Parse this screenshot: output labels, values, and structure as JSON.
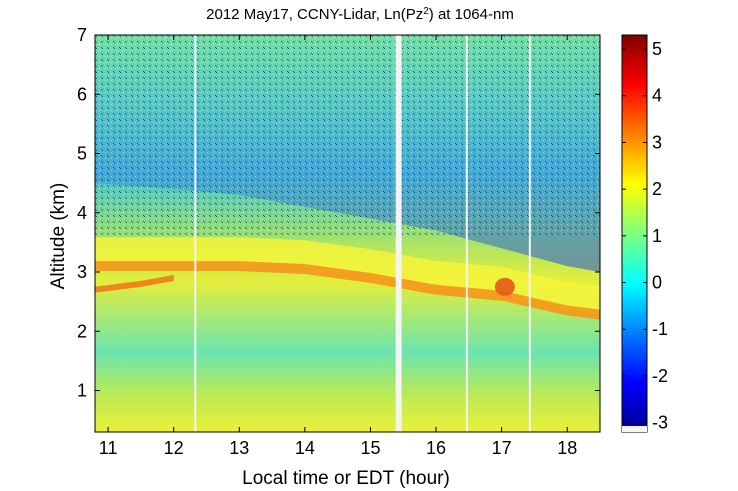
{
  "chart_data": {
    "type": "heatmap",
    "title": "2012 May17, CCNY-Lidar, Ln(Pz",
    "title_superscript": "2",
    "title_suffix": ") at 1064-nm",
    "xlabel": "Local time or EDT (hour)",
    "ylabel": "Altitude (km)",
    "xlim": [
      10.8,
      18.5
    ],
    "ylim": [
      0.3,
      7.0
    ],
    "xticks": [
      11,
      12,
      13,
      14,
      15,
      16,
      17,
      18
    ],
    "yticks": [
      1,
      2,
      3,
      4,
      5,
      6,
      7
    ],
    "colorbar": {
      "range": [
        -3.2,
        5.3
      ],
      "ticks": [
        -3,
        -2,
        -1,
        0,
        1,
        2,
        3,
        4,
        5
      ],
      "colormap": "jet"
    },
    "grid": false,
    "layers": {
      "aerosol_layer_top_km": {
        "x": [
          10.8,
          12,
          13,
          14,
          15,
          16,
          17,
          18,
          18.5
        ],
        "y": [
          4.5,
          4.4,
          4.3,
          4.1,
          3.9,
          3.7,
          3.4,
          3.1,
          3.0
        ]
      },
      "elevated_layer_km": {
        "x": [
          10.8,
          12,
          13,
          14,
          15,
          16,
          17,
          18,
          18.5
        ],
        "y": [
          3.1,
          3.1,
          3.1,
          3.05,
          2.9,
          2.7,
          2.6,
          2.35,
          2.28
        ]
      },
      "lower_band_km": {
        "x": [
          10.8,
          11.5,
          12
        ],
        "y": [
          2.7,
          2.8,
          2.9
        ]
      }
    },
    "data_gaps_hour": [
      12.33,
      15.43,
      16.47,
      17.43
    ]
  }
}
